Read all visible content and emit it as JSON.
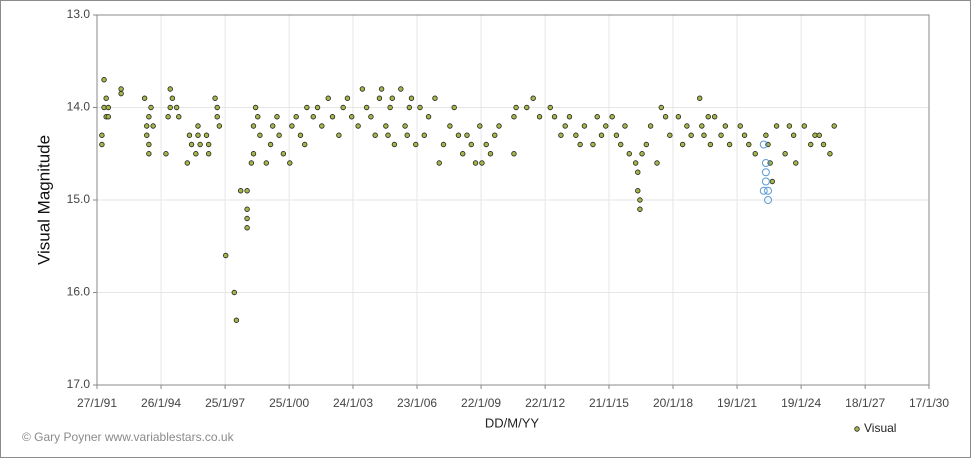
{
  "chart_data": {
    "type": "scatter",
    "xlabel": "DD/M/YY",
    "ylabel": "Visual Magnitude",
    "credit": "© Gary Poyner  www.variablestars.co.uk",
    "xlim": [
      1991.07,
      2030.04
    ],
    "ylim": [
      13,
      17
    ],
    "invert_y": true,
    "grid": true,
    "legend": "lower right",
    "xticks": [
      {
        "value": 1991.07,
        "label": "27/1/91"
      },
      {
        "value": 1994.07,
        "label": "26/1/94"
      },
      {
        "value": 1997.07,
        "label": "25/1/97"
      },
      {
        "value": 2000.07,
        "label": "25/1/00"
      },
      {
        "value": 2003.06,
        "label": "24/1/03"
      },
      {
        "value": 2006.06,
        "label": "23/1/06"
      },
      {
        "value": 2009.06,
        "label": "22/1/09"
      },
      {
        "value": 2012.06,
        "label": "22/1/12"
      },
      {
        "value": 2015.05,
        "label": "21/1/15"
      },
      {
        "value": 2018.05,
        "label": "20/1/18"
      },
      {
        "value": 2021.05,
        "label": "19/1/21"
      },
      {
        "value": 2024.05,
        "label": "19/1/24"
      },
      {
        "value": 2027.05,
        "label": "18/1/27"
      },
      {
        "value": 2030.04,
        "label": "17/1/30"
      }
    ],
    "yticks": [
      {
        "value": 13,
        "label": "13.0"
      },
      {
        "value": 14,
        "label": "14.0"
      },
      {
        "value": 15,
        "label": "15.0"
      },
      {
        "value": 16,
        "label": "16.0"
      },
      {
        "value": 17,
        "label": "17.0"
      }
    ],
    "series": [
      {
        "name": "Visual",
        "color": "#a4b84a",
        "x": [
          1991.3,
          1991.3,
          1991.4,
          1991.5,
          1991.5,
          1991.4,
          1991.6,
          1991.6,
          1992.2,
          1992.2,
          1993.3,
          1993.4,
          1993.4,
          1993.5,
          1993.5,
          1993.5,
          1993.6,
          1993.7,
          1994.3,
          1994.4,
          1994.5,
          1994.5,
          1994.6,
          1994.8,
          1994.9,
          1995.3,
          1995.4,
          1995.5,
          1995.7,
          1995.8,
          1995.8,
          1995.9,
          1996.2,
          1996.3,
          1996.3,
          1996.6,
          1996.7,
          1996.7,
          1996.8,
          1997.1,
          1997.5,
          1997.6,
          1997.8,
          1998.1,
          1998.1,
          1998.1,
          1998.1,
          1998.3,
          1998.4,
          1998.4,
          1998.5,
          1998.6,
          1998.7,
          1999.0,
          1999.2,
          1999.3,
          1999.5,
          1999.6,
          1999.8,
          2000.1,
          2000.2,
          2000.4,
          2000.6,
          2000.8,
          2000.9,
          2001.2,
          2001.4,
          2001.6,
          2001.9,
          2002.1,
          2002.4,
          2002.6,
          2002.8,
          2003.0,
          2003.3,
          2003.5,
          2003.7,
          2003.9,
          2004.1,
          2004.3,
          2004.4,
          2004.6,
          2004.7,
          2004.8,
          2004.9,
          2005.0,
          2005.3,
          2005.5,
          2005.6,
          2005.7,
          2005.8,
          2006.0,
          2006.2,
          2006.4,
          2006.6,
          2006.9,
          2007.1,
          2007.3,
          2007.6,
          2007.8,
          2008.0,
          2008.2,
          2008.4,
          2008.6,
          2008.8,
          2009.0,
          2009.1,
          2009.3,
          2009.5,
          2009.7,
          2009.9,
          2010.6,
          2010.6,
          2010.7,
          2011.2,
          2011.5,
          2011.8,
          2012.3,
          2012.5,
          2012.8,
          2013.0,
          2013.2,
          2013.5,
          2013.7,
          2013.9,
          2014.3,
          2014.5,
          2014.7,
          2014.9,
          2015.2,
          2015.4,
          2015.6,
          2015.8,
          2016.0,
          2016.3,
          2016.4,
          2016.4,
          2016.5,
          2016.5,
          2016.6,
          2016.8,
          2017.0,
          2017.3,
          2017.5,
          2017.7,
          2017.9,
          2018.3,
          2018.5,
          2018.7,
          2018.9,
          2019.3,
          2019.4,
          2019.5,
          2019.7,
          2019.8,
          2020.0,
          2020.3,
          2020.5,
          2020.7,
          2021.2,
          2021.4,
          2021.6,
          2021.9,
          2022.4,
          2022.5,
          2022.6,
          2022.7,
          2022.9,
          2023.3,
          2023.5,
          2023.7,
          2023.8,
          2024.2,
          2024.5,
          2024.7,
          2024.9,
          2025.1,
          2025.4,
          2025.6
        ],
        "values": [
          14.3,
          14.4,
          14.0,
          13.9,
          14.1,
          13.7,
          14.0,
          14.1,
          13.8,
          13.85,
          13.9,
          14.2,
          14.3,
          14.4,
          14.5,
          14.1,
          14.0,
          14.2,
          14.5,
          14.1,
          14.0,
          13.8,
          13.9,
          14.0,
          14.1,
          14.6,
          14.3,
          14.4,
          14.5,
          14.2,
          14.3,
          14.4,
          14.3,
          14.4,
          14.5,
          13.9,
          14.0,
          14.1,
          14.2,
          15.6,
          16.0,
          16.3,
          14.9,
          14.9,
          15.1,
          15.2,
          15.3,
          14.6,
          14.5,
          14.2,
          14.0,
          14.1,
          14.3,
          14.6,
          14.4,
          14.2,
          14.1,
          14.3,
          14.5,
          14.6,
          14.2,
          14.1,
          14.3,
          14.4,
          14.0,
          14.1,
          14.0,
          14.2,
          13.9,
          14.1,
          14.3,
          14.0,
          13.9,
          14.1,
          14.2,
          13.8,
          14.0,
          14.1,
          14.3,
          13.9,
          13.8,
          14.2,
          14.3,
          14.0,
          13.9,
          14.4,
          13.8,
          14.2,
          14.3,
          14.0,
          13.9,
          14.4,
          14.0,
          14.3,
          14.1,
          13.9,
          14.6,
          14.4,
          14.2,
          14.0,
          14.3,
          14.5,
          14.3,
          14.4,
          14.6,
          14.2,
          14.6,
          14.4,
          14.5,
          14.3,
          14.2,
          14.5,
          14.1,
          14.0,
          14.0,
          13.9,
          14.1,
          14.0,
          14.1,
          14.3,
          14.2,
          14.1,
          14.3,
          14.4,
          14.2,
          14.4,
          14.1,
          14.3,
          14.2,
          14.1,
          14.3,
          14.4,
          14.2,
          14.5,
          14.6,
          14.7,
          14.9,
          15.0,
          15.1,
          14.5,
          14.4,
          14.2,
          14.6,
          14.0,
          14.1,
          14.3,
          14.1,
          14.4,
          14.2,
          14.3,
          13.9,
          14.2,
          14.3,
          14.1,
          14.4,
          14.1,
          14.3,
          14.2,
          14.4,
          14.2,
          14.3,
          14.4,
          14.5,
          14.3,
          14.4,
          14.6,
          14.8,
          14.2,
          14.5,
          14.2,
          14.3,
          14.6,
          14.2,
          14.4,
          14.3,
          14.3,
          14.4,
          14.5,
          14.2
        ]
      },
      {
        "color": "#5b9bd5",
        "hollow": true,
        "x": [
          2022.3,
          2022.4,
          2022.4,
          2022.5,
          2022.5,
          2022.3,
          2022.4
        ],
        "values": [
          14.4,
          14.6,
          14.7,
          14.9,
          15.0,
          14.9,
          14.8
        ]
      }
    ]
  }
}
